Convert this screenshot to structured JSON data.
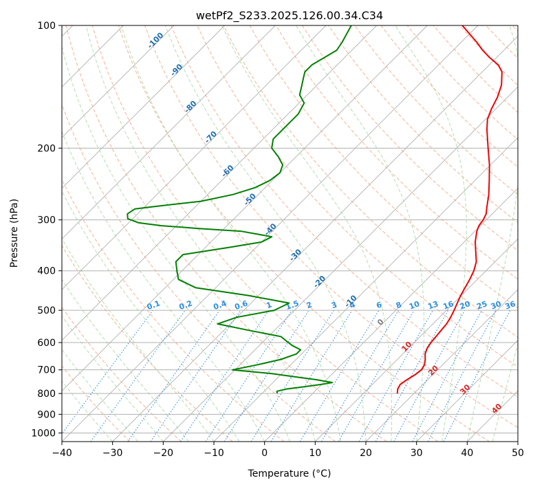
{
  "chart_data": {
    "type": "skew-t log-p diagram",
    "title": "wetPf2_S233.2025.126.00.34.C34",
    "xlabel": "Temperature (°C)",
    "ylabel": "Pressure (hPa)",
    "xlim": [
      -40,
      50
    ],
    "ylim": [
      1050,
      100
    ],
    "y_scale": "log",
    "grid": true,
    "x_ticks": [
      -40,
      -30,
      -20,
      -10,
      0,
      10,
      20,
      30,
      40,
      50
    ],
    "x_tick_labels": [
      "−40",
      "−30",
      "−20",
      "−10",
      "0",
      "10",
      "20",
      "30",
      "40",
      "50"
    ],
    "y_ticks": [
      100,
      200,
      300,
      400,
      500,
      600,
      700,
      800,
      900,
      1000
    ],
    "y_tick_labels": [
      "100",
      "200",
      "300",
      "400",
      "500",
      "600",
      "700",
      "800",
      "900",
      "1000"
    ],
    "colors": {
      "temperature": "#ee0000",
      "dewpoint": "#008000",
      "isotherm": "#b0b0b0",
      "dry_adiabat": "#f4a582",
      "moist_adiabat": "#a6d9a0",
      "mixing_ratio": "#2b8fe0",
      "isotherm_label": "#1f6fb0",
      "dry_adiabat_label": "#d62728",
      "zero_label": "#808080"
    },
    "isotherm_labels": [
      {
        "t": -100,
        "text": "-100"
      },
      {
        "t": -90,
        "text": "-90"
      },
      {
        "t": -80,
        "text": "-80"
      },
      {
        "t": -70,
        "text": "-70"
      },
      {
        "t": -60,
        "text": "-60"
      },
      {
        "t": -50,
        "text": "-50"
      },
      {
        "t": -40,
        "text": "-40"
      },
      {
        "t": -30,
        "text": "-30"
      },
      {
        "t": -20,
        "text": "-20"
      },
      {
        "t": -10,
        "text": "-10"
      }
    ],
    "zero_isotherm_label": "0",
    "dry_adiabat_labels": [
      "10",
      "20",
      "30",
      "40"
    ],
    "mixing_ratio_labels": [
      "0.1",
      "0.2",
      "0.4",
      "0.6",
      "1",
      "1.5",
      "2",
      "3",
      "4",
      "6",
      "8",
      "10",
      "13",
      "16",
      "20",
      "25",
      "30",
      "36"
    ],
    "mixing_ratio_values": [
      0.1,
      0.2,
      0.4,
      0.6,
      1,
      1.5,
      2,
      3,
      4,
      6,
      8,
      10,
      13,
      16,
      20,
      25,
      30,
      36
    ],
    "series": [
      {
        "key": "temperature",
        "points": [
          [
            800,
            16.7
          ],
          [
            780,
            15.9
          ],
          [
            760,
            15.5
          ],
          [
            740,
            15.9
          ],
          [
            720,
            16.5
          ],
          [
            700,
            16.8
          ],
          [
            680,
            16.4
          ],
          [
            660,
            15.5
          ],
          [
            640,
            14.4
          ],
          [
            620,
            13.7
          ],
          [
            600,
            13.3
          ],
          [
            580,
            13.1
          ],
          [
            560,
            12.9
          ],
          [
            540,
            12.7
          ],
          [
            520,
            12.2
          ],
          [
            500,
            11.5
          ],
          [
            480,
            10.7
          ],
          [
            460,
            9.9
          ],
          [
            440,
            9.2
          ],
          [
            420,
            8.5
          ],
          [
            400,
            7.6
          ],
          [
            380,
            6.3
          ],
          [
            360,
            4.3
          ],
          [
            340,
            2.2
          ],
          [
            320,
            0.4
          ],
          [
            310,
            -0.3
          ],
          [
            300,
            -0.6
          ],
          [
            290,
            -1.2
          ],
          [
            280,
            -2.3
          ],
          [
            260,
            -4.5
          ],
          [
            240,
            -7.2
          ],
          [
            220,
            -10.2
          ],
          [
            200,
            -13.8
          ],
          [
            180,
            -17.7
          ],
          [
            170,
            -19.6
          ],
          [
            160,
            -20.9
          ],
          [
            150,
            -22.0
          ],
          [
            140,
            -23.6
          ],
          [
            130,
            -26.1
          ],
          [
            125,
            -28.2
          ],
          [
            120,
            -31.3
          ],
          [
            115,
            -34.2
          ],
          [
            110,
            -36.9
          ],
          [
            100,
            -43.1
          ]
        ]
      },
      {
        "key": "dewpoint",
        "points": [
          [
            800,
            -7.0
          ],
          [
            790,
            -7.5
          ],
          [
            780,
            -6.0
          ],
          [
            770,
            -3.0
          ],
          [
            760,
            0.0
          ],
          [
            752,
            1.7
          ],
          [
            740,
            -2.0
          ],
          [
            730,
            -6.0
          ],
          [
            715,
            -12.0
          ],
          [
            700,
            -20.5
          ],
          [
            695,
            -19.5
          ],
          [
            680,
            -16.5
          ],
          [
            660,
            -13.0
          ],
          [
            640,
            -11.0
          ],
          [
            625,
            -11.0
          ],
          [
            610,
            -13.5
          ],
          [
            595,
            -15.5
          ],
          [
            580,
            -17.5
          ],
          [
            560,
            -25.0
          ],
          [
            540,
            -32.5
          ],
          [
            520,
            -30.0
          ],
          [
            500,
            -24.0
          ],
          [
            480,
            -22.5
          ],
          [
            460,
            -32.0
          ],
          [
            440,
            -44.0
          ],
          [
            420,
            -49.0
          ],
          [
            400,
            -51.0
          ],
          [
            380,
            -53.0
          ],
          [
            365,
            -53.0
          ],
          [
            350,
            -45.0
          ],
          [
            340,
            -40.0
          ],
          [
            330,
            -39.0
          ],
          [
            320,
            -46.0
          ],
          [
            315,
            -55.0
          ],
          [
            310,
            -63.0
          ],
          [
            305,
            -68.0
          ],
          [
            298,
            -71.0
          ],
          [
            290,
            -72.0
          ],
          [
            282,
            -71.5
          ],
          [
            278,
            -68.0
          ],
          [
            270,
            -60.0
          ],
          [
            260,
            -55.0
          ],
          [
            250,
            -52.0
          ],
          [
            240,
            -50.5
          ],
          [
            230,
            -50.0
          ],
          [
            220,
            -51.0
          ],
          [
            210,
            -53.5
          ],
          [
            200,
            -56.5
          ],
          [
            190,
            -58.0
          ],
          [
            180,
            -58.0
          ],
          [
            165,
            -58.0
          ],
          [
            155,
            -59.0
          ],
          [
            148,
            -61.5
          ],
          [
            140,
            -63.0
          ],
          [
            135,
            -64.0
          ],
          [
            130,
            -65.0
          ],
          [
            125,
            -65.0
          ],
          [
            120,
            -64.0
          ],
          [
            115,
            -63.0
          ],
          [
            110,
            -63.5
          ],
          [
            100,
            -65.0
          ]
        ]
      }
    ]
  }
}
